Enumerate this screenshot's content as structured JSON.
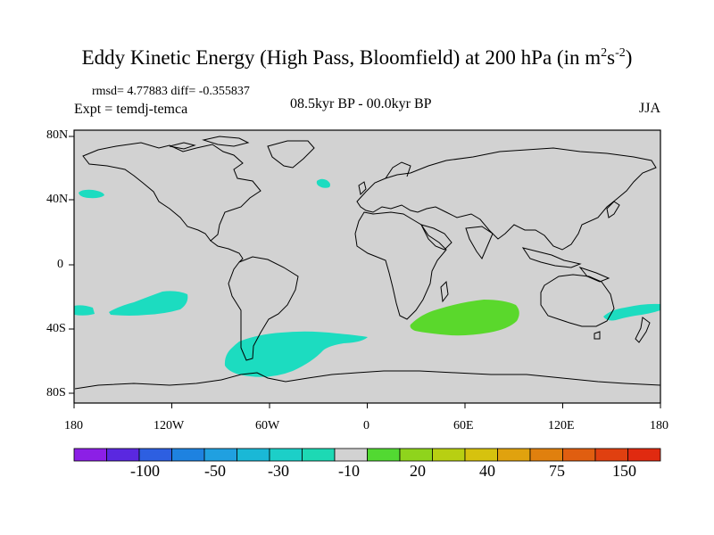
{
  "title": {
    "main": "Eddy Kinetic Energy (High Pass, Bloomfield) at 200 hPa (in m",
    "sup1": "2",
    "mid": "s",
    "sup2": "-2",
    "end": ")"
  },
  "stats": "rmsd= 4.77883 diff= -0.355837",
  "experiment": "Expt = temdj-temca",
  "period": "08.5kyr BP - 00.0kyr BP",
  "season": "JJA",
  "lat_labels": [
    "80N",
    "40N",
    "0",
    "40S",
    "80S"
  ],
  "lon_labels": [
    "180",
    "120W",
    "60W",
    "0",
    "60E",
    "120E",
    "180"
  ],
  "colorbar": {
    "labels": [
      "-100",
      "-50",
      "-30",
      "-10",
      "20",
      "40",
      "75",
      "150"
    ],
    "colors": [
      "#8c1fe6",
      "#5a28e0",
      "#2d5fe1",
      "#1e82e0",
      "#20a0e0",
      "#1ab8d6",
      "#1ccfc8",
      "#1dd9b4",
      "#d2d2d2",
      "#52d932",
      "#8fd41c",
      "#b8cf12",
      "#d6c20e",
      "#e0a20e",
      "#e0800e",
      "#e05e10",
      "#e04010",
      "#e02a10"
    ]
  },
  "map_colors": {
    "ocean": "#d2d2d2",
    "cyan": "#1cdcc0",
    "green": "#5ad82c"
  },
  "chart_data": {
    "type": "map",
    "title": "Eddy Kinetic Energy (High Pass, Bloomfield) at 200 hPa (in m^2 s^-2)",
    "projection": "cylindrical equidistant",
    "lon_range": [
      -180,
      180
    ],
    "lat_range": [
      -90,
      90
    ],
    "anomaly_regions": [
      {
        "name": "north-pacific-negative",
        "class": "-10 to -30"
      },
      {
        "name": "north-atlantic-negative",
        "class": "-10 to -30"
      },
      {
        "name": "south-pacific-negative",
        "class": "-10 to -30"
      },
      {
        "name": "southern-atlantic-negative",
        "class": "-10 to -30"
      },
      {
        "name": "south-indian-positive",
        "class": "10 to 20"
      },
      {
        "name": "australia-pacific-negative",
        "class": "-10 to -30"
      }
    ]
  }
}
